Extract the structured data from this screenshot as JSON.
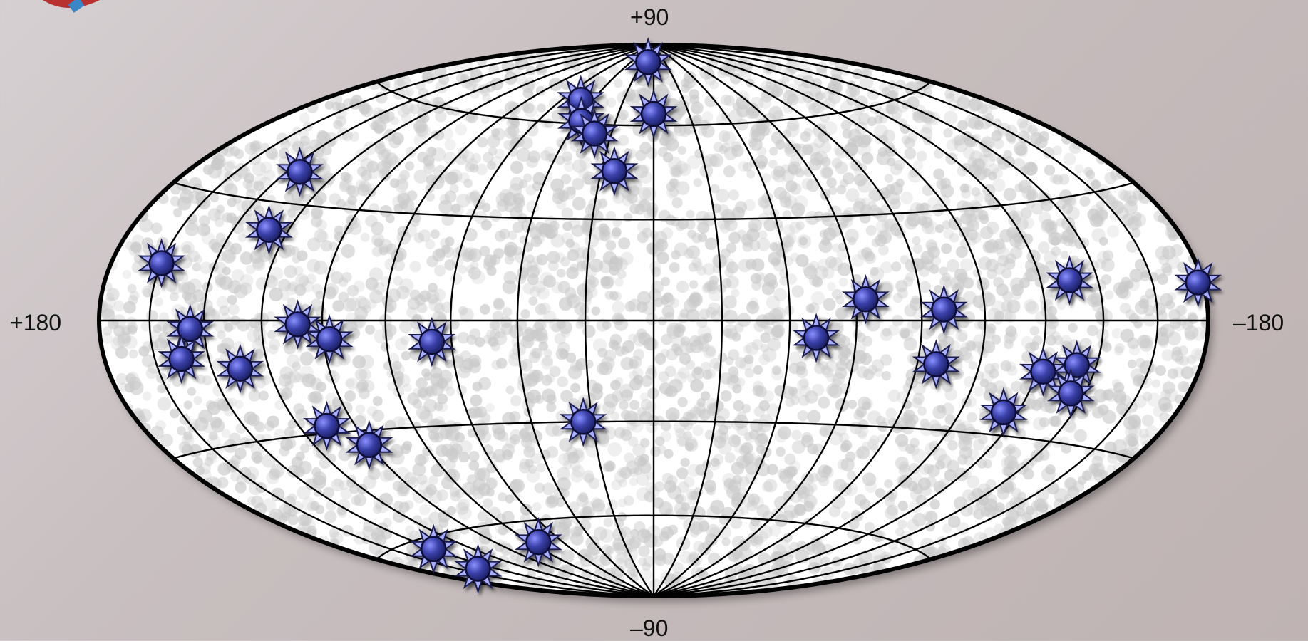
{
  "axis_labels": {
    "top": "+90",
    "bottom": "–90",
    "left": "+180",
    "right": "–180"
  },
  "chart_data": {
    "type": "scatter",
    "projection": "hammer-aitoff",
    "xlabel": "",
    "ylabel": "",
    "xlim": [
      180,
      -180
    ],
    "ylim": [
      -90,
      90
    ],
    "grid": true,
    "meridian_spacing_deg": 20,
    "parallel_spacing_deg": 30,
    "marker": "blue-star",
    "marker_color": "#3a40a8",
    "background_dot_color": "#c9c9c9",
    "points": [
      {
        "lon": 10,
        "lat": 83
      },
      {
        "lon": 0,
        "lat": 64
      },
      {
        "lon": 48,
        "lat": 68
      },
      {
        "lon": 38,
        "lat": 61
      },
      {
        "lon": 28,
        "lat": 57
      },
      {
        "lon": 15,
        "lat": 45
      },
      {
        "lon": 135,
        "lat": 38
      },
      {
        "lon": 127,
        "lat": 23
      },
      {
        "lon": 160,
        "lat": 13
      },
      {
        "lon": 145,
        "lat": -2
      },
      {
        "lon": 150,
        "lat": -9
      },
      {
        "lon": 130,
        "lat": -12
      },
      {
        "lon": 108,
        "lat": -1
      },
      {
        "lon": 98,
        "lat": -5
      },
      {
        "lon": 66,
        "lat": -6
      },
      {
        "lon": 23,
        "lat": -30
      },
      {
        "lon": 110,
        "lat": -28
      },
      {
        "lon": 100,
        "lat": -34
      },
      {
        "lon": 140,
        "lat": -63
      },
      {
        "lon": 150,
        "lat": -70
      },
      {
        "lon": 75,
        "lat": -67
      },
      {
        "lon": -63,
        "lat": 6
      },
      {
        "lon": -48,
        "lat": -5
      },
      {
        "lon": -87,
        "lat": 3
      },
      {
        "lon": -86,
        "lat": -12
      },
      {
        "lon": -130,
        "lat": 10
      },
      {
        "lon": -122,
        "lat": -13
      },
      {
        "lon": -133,
        "lat": -11
      },
      {
        "lon": -135,
        "lat": -18
      },
      {
        "lon": -115,
        "lat": -24
      },
      {
        "lon": -178,
        "lat": 8
      }
    ]
  }
}
